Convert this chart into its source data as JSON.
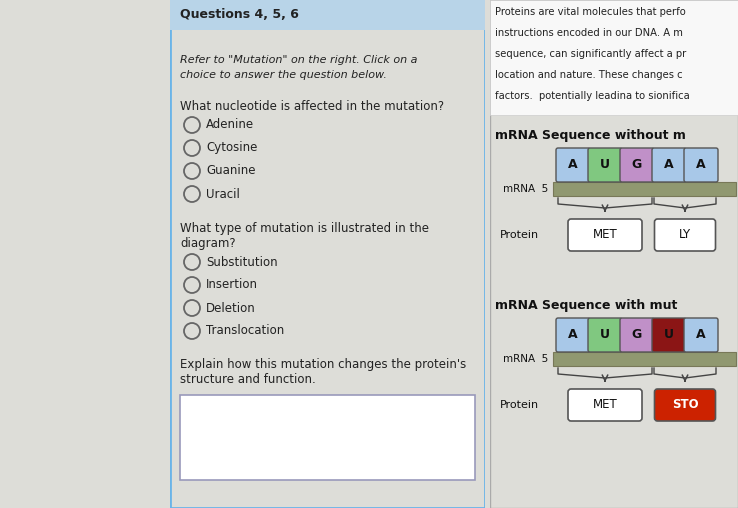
{
  "bg_color": "#ddddd8",
  "left_margin_color": "#ddddd8",
  "blue_bar_color": "#6ab4e8",
  "quiz_panel_bg": "#f0f0ec",
  "quiz_panel_border": "#6ab4e8",
  "right_panel_bg": "#f0f0ec",
  "right_panel_border": "#aaaaaa",
  "header_bg": "#b8d4e8",
  "header_text": "Questions 4, 5, 6",
  "italic_text1": "Refer to \"Mutation\" on the right. Click on a",
  "italic_text2": "choice to answer the question below.",
  "q1": "What nucleotide is affected in the mutation?",
  "q1_options": [
    "Adenine",
    "Cytosine",
    "Guanine",
    "Uracil"
  ],
  "q2_line1": "What type of mutation is illustrated in the",
  "q2_line2": "diagram?",
  "q2_options": [
    "Substitution",
    "Insertion",
    "Deletion",
    "Translocation"
  ],
  "q3_line1": "Explain how this mutation changes the protein's",
  "q3_line2": "structure and function.",
  "right_text_lines": [
    "Proteins are vital molecules that perfo",
    "instructions encoded in our DNA. A m",
    "sequence, can significantly affect a pr",
    "location and nature. These changes c",
    "factors.  potentially leadina to sionifica"
  ],
  "mrna1_title": "mRNA Sequence without m",
  "mrna1_nucleotides": [
    "A",
    "U",
    "G",
    "A",
    "A"
  ],
  "mrna1_colors": [
    "#a8c8e8",
    "#80c880",
    "#c090c8",
    "#a8c8e8",
    "#a8c8e8"
  ],
  "mrna1_label": "mRNA  5",
  "mrna1_protein1": "MET",
  "mrna1_protein2": "LY",
  "mrna2_title": "mRNA Sequence with mut",
  "mrna2_nucleotides": [
    "A",
    "U",
    "G",
    "U",
    "A"
  ],
  "mrna2_colors": [
    "#a8c8e8",
    "#80c880",
    "#c090c8",
    "#8b1515",
    "#a8c8e8"
  ],
  "mrna2_label": "mRNA  5",
  "mrna2_protein1": "MET",
  "mrna2_protein2": "STO",
  "mrna2_protein2_color": "#cc2200",
  "strand_color": "#909870",
  "strand_edge": "#787858"
}
